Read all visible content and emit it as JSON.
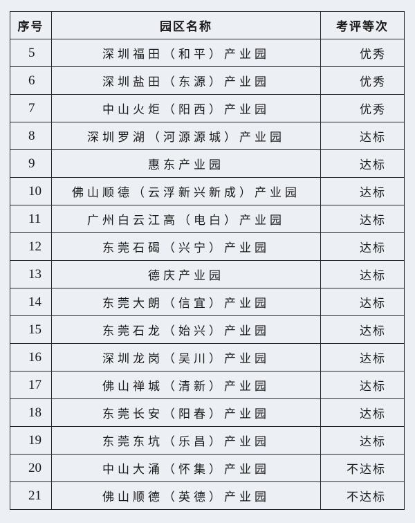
{
  "table": {
    "headers": [
      "序号",
      "园区名称",
      "考评等次"
    ],
    "rows": [
      {
        "no": "5",
        "name": "深圳福田（和平）产业园",
        "grade": "优秀"
      },
      {
        "no": "6",
        "name": "深圳盐田（东源）产业园",
        "grade": "优秀"
      },
      {
        "no": "7",
        "name": "中山火炬（阳西）产业园",
        "grade": "优秀"
      },
      {
        "no": "8",
        "name": "深圳罗湖（河源源城）产业园",
        "grade": "达标"
      },
      {
        "no": "9",
        "name": "惠东产业园",
        "grade": "达标"
      },
      {
        "no": "10",
        "name": "佛山顺德（云浮新兴新成）产业园",
        "grade": "达标"
      },
      {
        "no": "11",
        "name": "广州白云江高（电白）产业园",
        "grade": "达标"
      },
      {
        "no": "12",
        "name": "东莞石碣（兴宁）产业园",
        "grade": "达标"
      },
      {
        "no": "13",
        "name": "德庆产业园",
        "grade": "达标"
      },
      {
        "no": "14",
        "name": "东莞大朗（信宜）产业园",
        "grade": "达标"
      },
      {
        "no": "15",
        "name": "东莞石龙（始兴）产业园",
        "grade": "达标"
      },
      {
        "no": "16",
        "name": "深圳龙岗（吴川）产业园",
        "grade": "达标"
      },
      {
        "no": "17",
        "name": "佛山禅城（清新）产业园",
        "grade": "达标"
      },
      {
        "no": "18",
        "name": "东莞长安（阳春）产业园",
        "grade": "达标"
      },
      {
        "no": "19",
        "name": "东莞东坑（乐昌）产业园",
        "grade": "达标"
      },
      {
        "no": "20",
        "name": "中山大涌（怀集）产业园",
        "grade": "不达标"
      },
      {
        "no": "21",
        "name": "佛山顺德（英德）产业园",
        "grade": "不达标"
      }
    ]
  }
}
